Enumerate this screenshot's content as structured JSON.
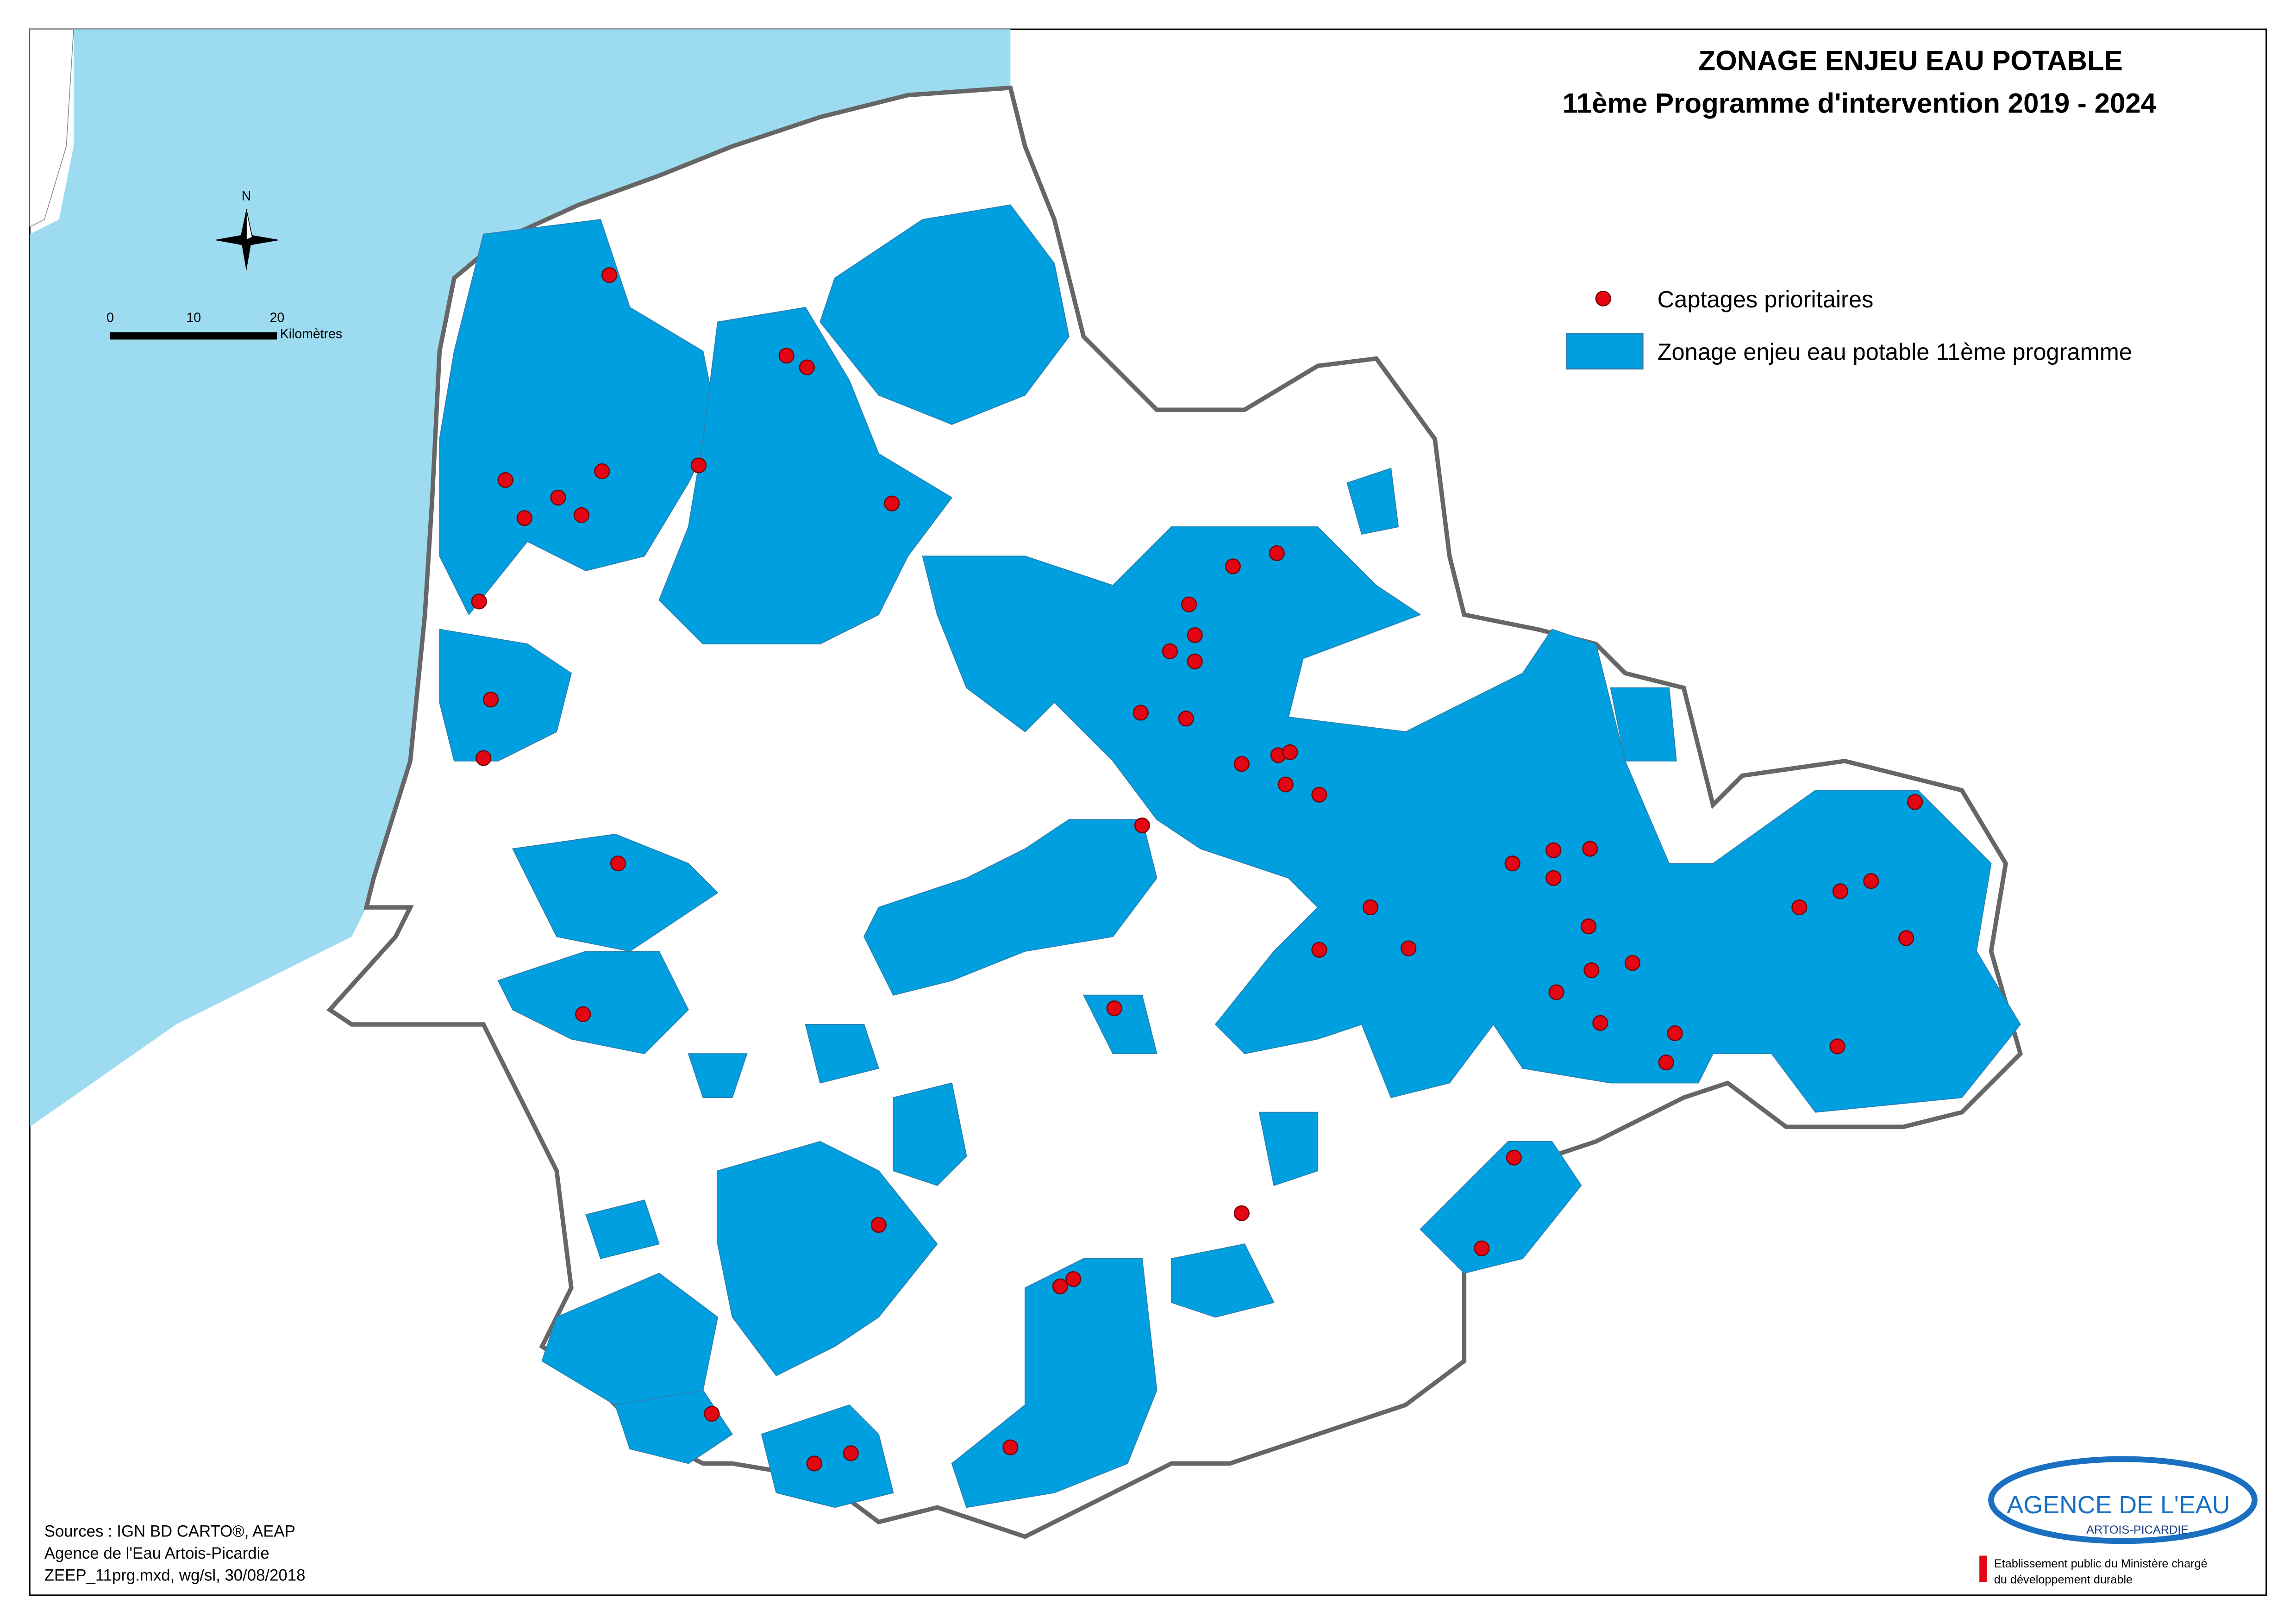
{
  "header": {
    "title": "ZONAGE ENJEU EAU POTABLE",
    "subtitle": "11ème Programme d'intervention 2019 - 2024"
  },
  "legend": {
    "items": [
      {
        "label": "Captages prioritaires"
      },
      {
        "label": "Zonage enjeu eau potable 11ème programme"
      }
    ]
  },
  "scale_bar": {
    "ticks": [
      0,
      10,
      20
    ],
    "unit": "Kilomètres"
  },
  "north_arrow": {
    "label": "N"
  },
  "sources": [
    "Sources : IGN BD CARTO®, AEAP",
    "Agence de l'Eau Artois-Picardie",
    "ZEEP_11prg.mxd, wg/sl, 30/08/2018"
  ],
  "logo": {
    "name": "AGENCE DE L'EAU",
    "subname": "ARTOIS-PICARDIE",
    "note": [
      "Etablissement public du Ministère chargé",
      "du développement durable"
    ]
  }
}
